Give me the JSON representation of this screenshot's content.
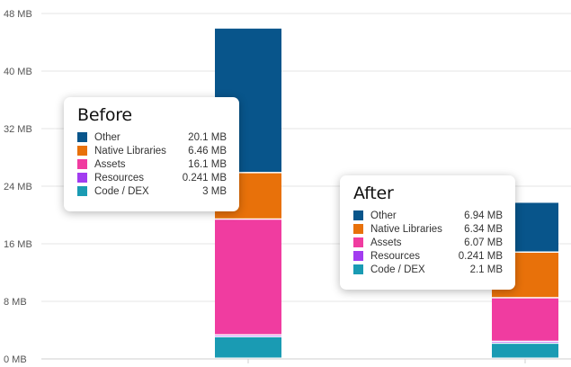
{
  "chart_data": {
    "type": "bar",
    "stacked": true,
    "categories": [
      "Before",
      "After"
    ],
    "series": [
      {
        "name": "Code / DEX",
        "color": "#1a9bb3",
        "values": [
          3,
          2.1
        ],
        "value_labels": [
          "3 MB",
          "2.1 MB"
        ]
      },
      {
        "name": "Resources",
        "color": "#a23cf0",
        "values": [
          0.241,
          0.241
        ],
        "value_labels": [
          "0.241 MB",
          "0.241 MB"
        ]
      },
      {
        "name": "Assets",
        "color": "#f03ca0",
        "values": [
          16.1,
          6.07
        ],
        "value_labels": [
          "16.1 MB",
          "6.07 MB"
        ]
      },
      {
        "name": "Native Libraries",
        "color": "#e8710a",
        "values": [
          6.46,
          6.34
        ],
        "value_labels": [
          "6.46 MB",
          "6.34 MB"
        ]
      },
      {
        "name": "Other",
        "color": "#08558b",
        "values": [
          20.1,
          6.94
        ],
        "value_labels": [
          "20.1 MB",
          "6.94 MB"
        ]
      }
    ],
    "y_ticks": [
      "0 MB",
      "8 MB",
      "16 MB",
      "24 MB",
      "32 MB",
      "40 MB",
      "48 MB"
    ],
    "ylim": [
      0,
      48
    ],
    "grid": true,
    "tooltips": [
      {
        "title": "Before",
        "rows": [
          {
            "name": "Other",
            "value": "20.1 MB",
            "color": "#08558b"
          },
          {
            "name": "Native Libraries",
            "value": "6.46 MB",
            "color": "#e8710a"
          },
          {
            "name": "Assets",
            "value": "16.1 MB",
            "color": "#f03ca0"
          },
          {
            "name": "Resources",
            "value": "0.241 MB",
            "color": "#a23cf0"
          },
          {
            "name": "Code / DEX",
            "value": "3 MB",
            "color": "#1a9bb3"
          }
        ]
      },
      {
        "title": "After",
        "rows": [
          {
            "name": "Other",
            "value": "6.94 MB",
            "color": "#08558b"
          },
          {
            "name": "Native Libraries",
            "value": "6.34 MB",
            "color": "#e8710a"
          },
          {
            "name": "Assets",
            "value": "6.07 MB",
            "color": "#f03ca0"
          },
          {
            "name": "Resources",
            "value": "0.241 MB",
            "color": "#a23cf0"
          },
          {
            "name": "Code / DEX",
            "value": "2.1 MB",
            "color": "#1a9bb3"
          }
        ]
      }
    ]
  }
}
